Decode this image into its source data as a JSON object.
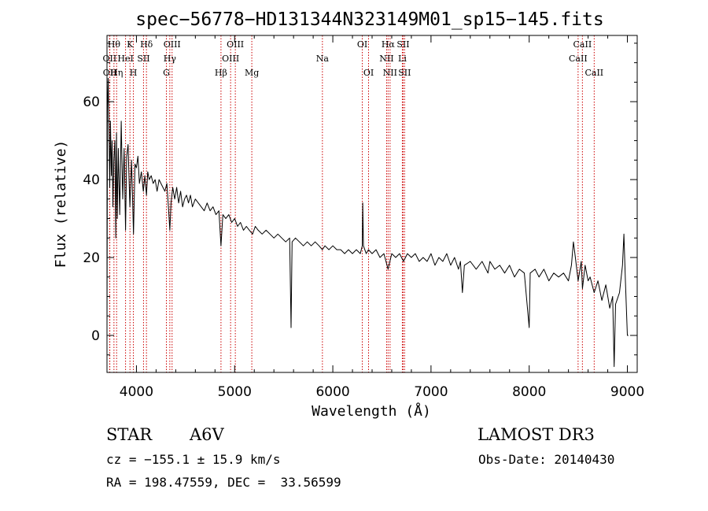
{
  "chart_data": {
    "type": "line",
    "title": "spec−56778−HD131344N323149M01_sp15−145.fits",
    "xlabel": "Wavelength (Å)",
    "ylabel": "Flux (relative)",
    "xlim": [
      3700,
      9100
    ],
    "ylim": [
      -9.5,
      77
    ],
    "xticks": [
      4000,
      5000,
      6000,
      7000,
      8000,
      9000
    ],
    "xtick_labels": [
      "4000",
      "5000",
      "6000",
      "7000",
      "8000",
      "9000"
    ],
    "yticks": [
      0,
      20,
      40,
      60
    ],
    "ytick_labels": [
      "0",
      "20",
      "40",
      "60"
    ],
    "grid": false,
    "line_color": "#000000",
    "marker_color": "#cc0000",
    "series": [
      {
        "name": "spectrum",
        "points": [
          [
            3700,
            0
          ],
          [
            3705,
            58
          ],
          [
            3712,
            66
          ],
          [
            3720,
            53
          ],
          [
            3728,
            38
          ],
          [
            3735,
            55
          ],
          [
            3745,
            41
          ],
          [
            3752,
            50
          ],
          [
            3760,
            33
          ],
          [
            3770,
            45
          ],
          [
            3780,
            50
          ],
          [
            3790,
            25
          ],
          [
            3797,
            52
          ],
          [
            3805,
            30
          ],
          [
            3815,
            48
          ],
          [
            3830,
            31
          ],
          [
            3845,
            55
          ],
          [
            3860,
            35
          ],
          [
            3875,
            48
          ],
          [
            3889,
            27
          ],
          [
            3900,
            46
          ],
          [
            3915,
            49
          ],
          [
            3933,
            33
          ],
          [
            3950,
            45
          ],
          [
            3970,
            26
          ],
          [
            3985,
            44
          ],
          [
            4000,
            43
          ],
          [
            4015,
            46
          ],
          [
            4030,
            39
          ],
          [
            4050,
            42
          ],
          [
            4070,
            37
          ],
          [
            4085,
            41
          ],
          [
            4102,
            36
          ],
          [
            4115,
            42
          ],
          [
            4130,
            40
          ],
          [
            4150,
            41
          ],
          [
            4170,
            39
          ],
          [
            4190,
            40
          ],
          [
            4210,
            37
          ],
          [
            4230,
            40
          ],
          [
            4250,
            39
          ],
          [
            4270,
            38
          ],
          [
            4290,
            37
          ],
          [
            4310,
            39
          ],
          [
            4328,
            32
          ],
          [
            4340,
            27
          ],
          [
            4352,
            34
          ],
          [
            4370,
            38
          ],
          [
            4390,
            35
          ],
          [
            4410,
            38
          ],
          [
            4430,
            34
          ],
          [
            4450,
            37
          ],
          [
            4470,
            33
          ],
          [
            4490,
            35
          ],
          [
            4510,
            36
          ],
          [
            4530,
            34
          ],
          [
            4550,
            36
          ],
          [
            4570,
            33
          ],
          [
            4600,
            35
          ],
          [
            4630,
            34
          ],
          [
            4660,
            33
          ],
          [
            4690,
            32
          ],
          [
            4720,
            34
          ],
          [
            4750,
            32
          ],
          [
            4780,
            33
          ],
          [
            4810,
            31
          ],
          [
            4840,
            32
          ],
          [
            4861,
            23
          ],
          [
            4880,
            31
          ],
          [
            4910,
            30
          ],
          [
            4940,
            31
          ],
          [
            4970,
            29
          ],
          [
            5000,
            30
          ],
          [
            5030,
            28
          ],
          [
            5060,
            29
          ],
          [
            5090,
            27
          ],
          [
            5120,
            28
          ],
          [
            5150,
            27
          ],
          [
            5183,
            26
          ],
          [
            5210,
            28
          ],
          [
            5240,
            27
          ],
          [
            5280,
            26
          ],
          [
            5320,
            27
          ],
          [
            5360,
            26
          ],
          [
            5400,
            25
          ],
          [
            5440,
            26
          ],
          [
            5480,
            25
          ],
          [
            5520,
            24
          ],
          [
            5560,
            25
          ],
          [
            5575,
            2
          ],
          [
            5585,
            24
          ],
          [
            5620,
            25
          ],
          [
            5660,
            24
          ],
          [
            5700,
            23
          ],
          [
            5740,
            24
          ],
          [
            5780,
            23
          ],
          [
            5820,
            24
          ],
          [
            5860,
            23
          ],
          [
            5893,
            22
          ],
          [
            5920,
            23
          ],
          [
            5960,
            22
          ],
          [
            6000,
            23
          ],
          [
            6040,
            22
          ],
          [
            6080,
            22
          ],
          [
            6120,
            21
          ],
          [
            6160,
            22
          ],
          [
            6200,
            21
          ],
          [
            6240,
            22
          ],
          [
            6280,
            21
          ],
          [
            6300,
            23
          ],
          [
            6305,
            34
          ],
          [
            6312,
            23
          ],
          [
            6340,
            21
          ],
          [
            6363,
            22
          ],
          [
            6400,
            21
          ],
          [
            6440,
            22
          ],
          [
            6480,
            20
          ],
          [
            6520,
            21
          ],
          [
            6563,
            17
          ],
          [
            6600,
            21
          ],
          [
            6640,
            20
          ],
          [
            6680,
            21
          ],
          [
            6720,
            19
          ],
          [
            6760,
            21
          ],
          [
            6800,
            20
          ],
          [
            6840,
            21
          ],
          [
            6880,
            19
          ],
          [
            6920,
            20
          ],
          [
            6960,
            19
          ],
          [
            7000,
            21
          ],
          [
            7040,
            18
          ],
          [
            7080,
            20
          ],
          [
            7120,
            19
          ],
          [
            7160,
            21
          ],
          [
            7200,
            18
          ],
          [
            7240,
            20
          ],
          [
            7280,
            17
          ],
          [
            7300,
            19
          ],
          [
            7320,
            11
          ],
          [
            7340,
            18
          ],
          [
            7400,
            19
          ],
          [
            7460,
            17
          ],
          [
            7520,
            19
          ],
          [
            7580,
            16
          ],
          [
            7600,
            19
          ],
          [
            7650,
            17
          ],
          [
            7700,
            18
          ],
          [
            7750,
            16
          ],
          [
            7800,
            18
          ],
          [
            7850,
            15
          ],
          [
            7900,
            17
          ],
          [
            7950,
            16
          ],
          [
            8000,
            2
          ],
          [
            8010,
            16
          ],
          [
            8060,
            17
          ],
          [
            8100,
            15
          ],
          [
            8150,
            17
          ],
          [
            8200,
            14
          ],
          [
            8250,
            16
          ],
          [
            8300,
            15
          ],
          [
            8350,
            16
          ],
          [
            8400,
            14
          ],
          [
            8430,
            18
          ],
          [
            8450,
            24
          ],
          [
            8470,
            20
          ],
          [
            8498,
            14
          ],
          [
            8530,
            19
          ],
          [
            8542,
            12
          ],
          [
            8570,
            18
          ],
          [
            8600,
            14
          ],
          [
            8620,
            15
          ],
          [
            8662,
            11
          ],
          [
            8700,
            14
          ],
          [
            8740,
            9
          ],
          [
            8780,
            13
          ],
          [
            8820,
            7
          ],
          [
            8850,
            10
          ],
          [
            8865,
            -8
          ],
          [
            8880,
            8
          ],
          [
            8920,
            11
          ],
          [
            8950,
            18
          ],
          [
            8965,
            26
          ],
          [
            8980,
            14
          ],
          [
            9000,
            0
          ],
          [
            9010,
            0
          ]
        ]
      }
    ],
    "line_markers": [
      {
        "wavelength": 3727,
        "label": "OII",
        "row": 1
      },
      {
        "wavelength": 3729,
        "label": "OII",
        "row": 2
      },
      {
        "wavelength": 3771,
        "label": "Hθ",
        "row": 0
      },
      {
        "wavelength": 3798,
        "label": "Hη",
        "row": 2
      },
      {
        "wavelength": 3889,
        "label": "HeI",
        "row": 1
      },
      {
        "wavelength": 3934,
        "label": "K",
        "row": 0
      },
      {
        "wavelength": 3969,
        "label": "H",
        "row": 2
      },
      {
        "wavelength": 4072,
        "label": "SII",
        "row": 1
      },
      {
        "wavelength": 4102,
        "label": "Hδ",
        "row": 0
      },
      {
        "wavelength": 4305,
        "label": "G",
        "row": 2
      },
      {
        "wavelength": 4340,
        "label": "Hγ",
        "row": 1
      },
      {
        "wavelength": 4363,
        "label": "OIII",
        "row": 0
      },
      {
        "wavelength": 4861,
        "label": "Hβ",
        "row": 2
      },
      {
        "wavelength": 4959,
        "label": "OIII",
        "row": 1
      },
      {
        "wavelength": 5007,
        "label": "OIII",
        "row": 0
      },
      {
        "wavelength": 5175,
        "label": "Mg",
        "row": 2
      },
      {
        "wavelength": 5894,
        "label": "Na",
        "row": 1
      },
      {
        "wavelength": 6300,
        "label": "OI",
        "row": 0
      },
      {
        "wavelength": 6364,
        "label": "OI",
        "row": 2
      },
      {
        "wavelength": 6548,
        "label": "NII",
        "row": 1
      },
      {
        "wavelength": 6563,
        "label": "Hα",
        "row": 0
      },
      {
        "wavelength": 6583,
        "label": "NII",
        "row": 2
      },
      {
        "wavelength": 6708,
        "label": "Li",
        "row": 1
      },
      {
        "wavelength": 6716,
        "label": "SII",
        "row": 0
      },
      {
        "wavelength": 6731,
        "label": "SII",
        "row": 2
      },
      {
        "wavelength": 8498,
        "label": "CaII",
        "row": 1
      },
      {
        "wavelength": 8542,
        "label": "CaII",
        "row": 0
      },
      {
        "wavelength": 8662,
        "label": "CaII",
        "row": 2
      }
    ]
  },
  "info": {
    "object_class": "STAR",
    "subclass": "A6V",
    "survey": "LAMOST DR3",
    "cz": "cz = −155.1 ± 15.9 km/s",
    "obs_date": "Obs-Date: 20140430",
    "coords": "RA = 198.47559, DEC =  33.56599"
  }
}
